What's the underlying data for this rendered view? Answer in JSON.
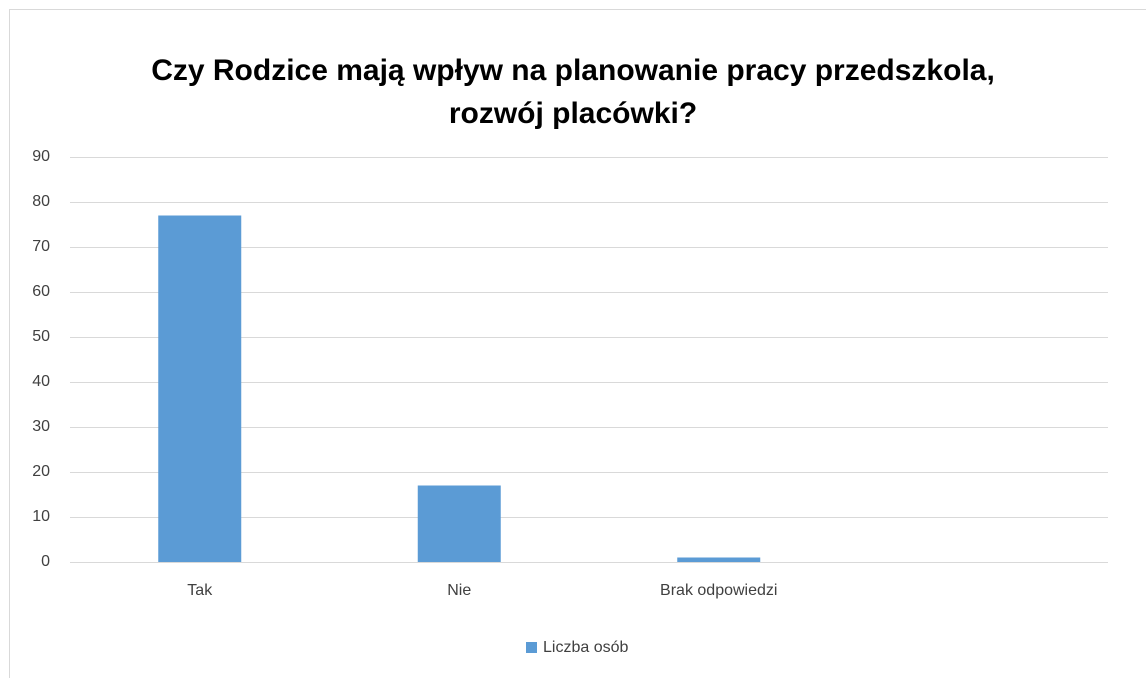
{
  "chart_data": {
    "type": "bar",
    "title": [
      "Czy Rodzice mają wpływ na planowanie pracy przedszkola,",
      "rozwój placówki?"
    ],
    "categories": [
      "Tak",
      "Nie",
      "Brak odpowiedzi",
      null
    ],
    "series": [
      {
        "name": "Liczba osób",
        "color": "#5b9bd5",
        "values": [
          77,
          17,
          1,
          null
        ]
      }
    ],
    "ylim": [
      0,
      90
    ],
    "yticks": [
      0,
      10,
      20,
      30,
      40,
      50,
      60,
      70,
      80,
      90
    ],
    "grid": true,
    "legend": "bottom"
  }
}
